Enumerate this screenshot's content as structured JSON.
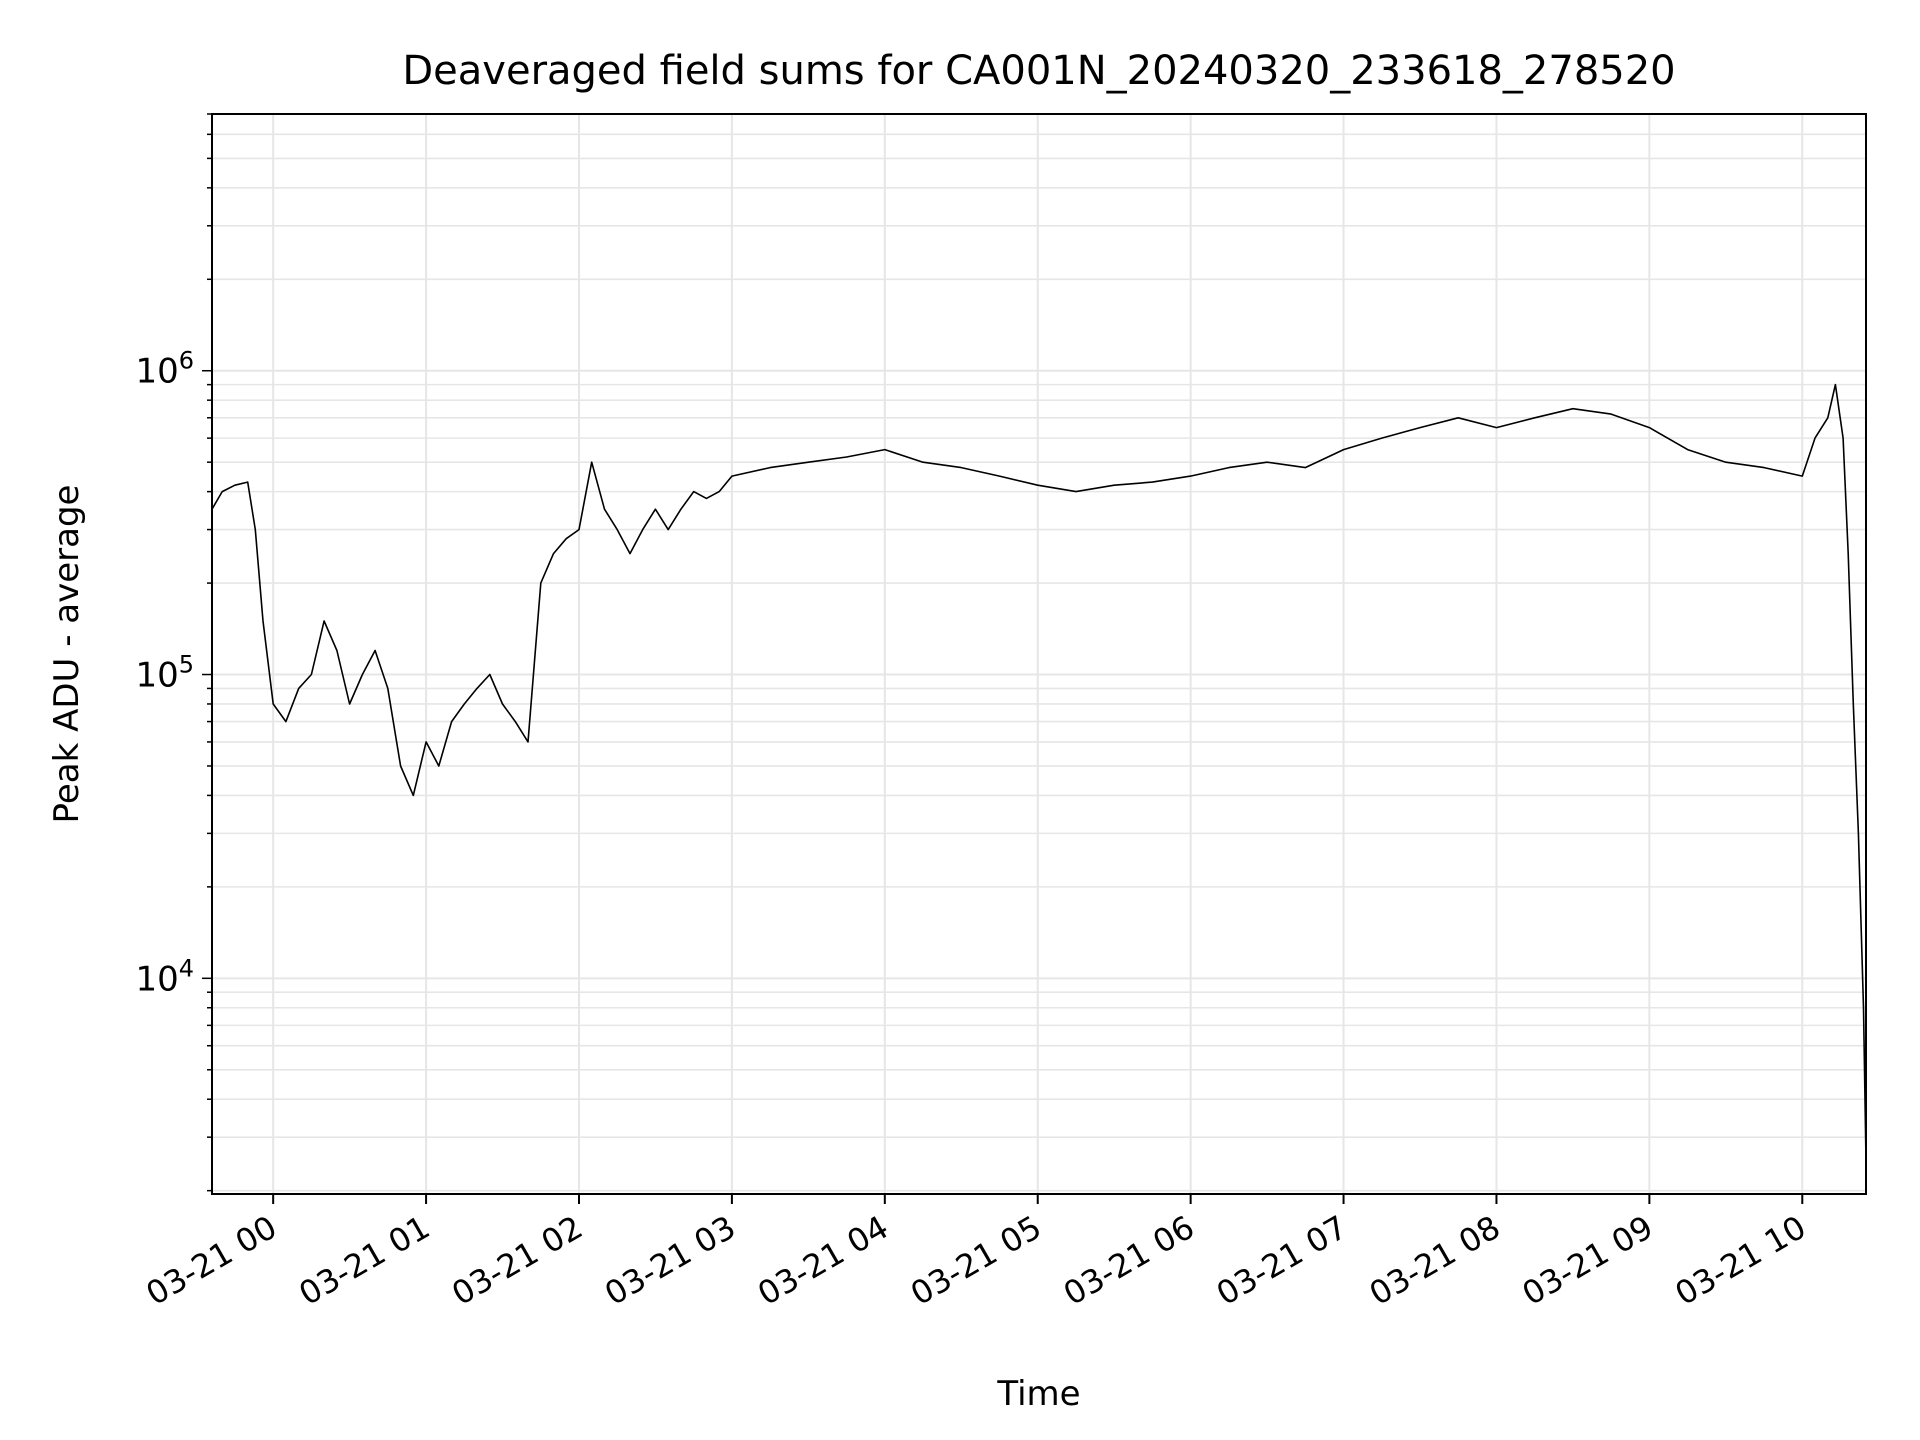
{
  "chart_data": {
    "type": "line",
    "title": "Deaveraged field sums for CA001N_20240320_233618_278520",
    "xlabel": "Time",
    "ylabel": "Peak ADU - average",
    "y_scale": "log",
    "ylim": [
      1950,
      7000000
    ],
    "xlim": [
      "2024-03-20 23:36",
      "2024-03-21 10:25"
    ],
    "grid": true,
    "legend": "none",
    "line_color": "#000000",
    "grid_color": "#e6e6e6",
    "x_ticks": [
      "03-21 00",
      "03-21 01",
      "03-21 02",
      "03-21 03",
      "03-21 04",
      "03-21 05",
      "03-21 06",
      "03-21 07",
      "03-21 08",
      "03-21 09",
      "03-21 10"
    ],
    "y_ticks": [
      {
        "value": 10000,
        "base": "10",
        "exp": "4"
      },
      {
        "value": 100000,
        "base": "10",
        "exp": "5"
      },
      {
        "value": 1000000,
        "base": "10",
        "exp": "6"
      }
    ],
    "series": [
      {
        "x": [
          "2024-03-20 23:36",
          "2024-03-20 23:40",
          "2024-03-20 23:45",
          "2024-03-20 23:50",
          "2024-03-20 23:53",
          "2024-03-20 23:56",
          "2024-03-21 00:00",
          "2024-03-21 00:05",
          "2024-03-21 00:10",
          "2024-03-21 00:15",
          "2024-03-21 00:20",
          "2024-03-21 00:25",
          "2024-03-21 00:30",
          "2024-03-21 00:35",
          "2024-03-21 00:40",
          "2024-03-21 00:45",
          "2024-03-21 00:50",
          "2024-03-21 00:55",
          "2024-03-21 01:00",
          "2024-03-21 01:05",
          "2024-03-21 01:10",
          "2024-03-21 01:15",
          "2024-03-21 01:20",
          "2024-03-21 01:25",
          "2024-03-21 01:30",
          "2024-03-21 01:35",
          "2024-03-21 01:40",
          "2024-03-21 01:45",
          "2024-03-21 01:50",
          "2024-03-21 01:55",
          "2024-03-21 02:00",
          "2024-03-21 02:05",
          "2024-03-21 02:10",
          "2024-03-21 02:15",
          "2024-03-21 02:20",
          "2024-03-21 02:25",
          "2024-03-21 02:30",
          "2024-03-21 02:35",
          "2024-03-21 02:40",
          "2024-03-21 02:45",
          "2024-03-21 02:50",
          "2024-03-21 02:55",
          "2024-03-21 03:00",
          "2024-03-21 03:15",
          "2024-03-21 03:30",
          "2024-03-21 03:45",
          "2024-03-21 04:00",
          "2024-03-21 04:15",
          "2024-03-21 04:30",
          "2024-03-21 04:45",
          "2024-03-21 05:00",
          "2024-03-21 05:15",
          "2024-03-21 05:30",
          "2024-03-21 05:45",
          "2024-03-21 06:00",
          "2024-03-21 06:15",
          "2024-03-21 06:30",
          "2024-03-21 06:45",
          "2024-03-21 07:00",
          "2024-03-21 07:15",
          "2024-03-21 07:30",
          "2024-03-21 07:45",
          "2024-03-21 08:00",
          "2024-03-21 08:15",
          "2024-03-21 08:30",
          "2024-03-21 08:45",
          "2024-03-21 09:00",
          "2024-03-21 09:15",
          "2024-03-21 09:30",
          "2024-03-21 09:45",
          "2024-03-21 10:00",
          "2024-03-21 10:05",
          "2024-03-21 10:10",
          "2024-03-21 10:13",
          "2024-03-21 10:16",
          "2024-03-21 10:18",
          "2024-03-21 10:20",
          "2024-03-21 10:22",
          "2024-03-21 10:24",
          "2024-03-21 10:25"
        ],
        "y": [
          350000,
          400000,
          420000,
          430000,
          300000,
          150000,
          80000,
          70000,
          90000,
          100000,
          150000,
          120000,
          80000,
          100000,
          120000,
          90000,
          50000,
          40000,
          60000,
          50000,
          70000,
          80000,
          90000,
          100000,
          80000,
          70000,
          60000,
          200000,
          250000,
          280000,
          300000,
          500000,
          350000,
          300000,
          250000,
          300000,
          350000,
          300000,
          350000,
          400000,
          380000,
          400000,
          450000,
          480000,
          500000,
          520000,
          550000,
          500000,
          480000,
          450000,
          420000,
          400000,
          420000,
          430000,
          450000,
          480000,
          500000,
          480000,
          550000,
          600000,
          650000,
          700000,
          650000,
          700000,
          750000,
          720000,
          650000,
          550000,
          500000,
          480000,
          450000,
          600000,
          700000,
          900000,
          600000,
          250000,
          80000,
          30000,
          8000,
          2500
        ]
      }
    ]
  }
}
